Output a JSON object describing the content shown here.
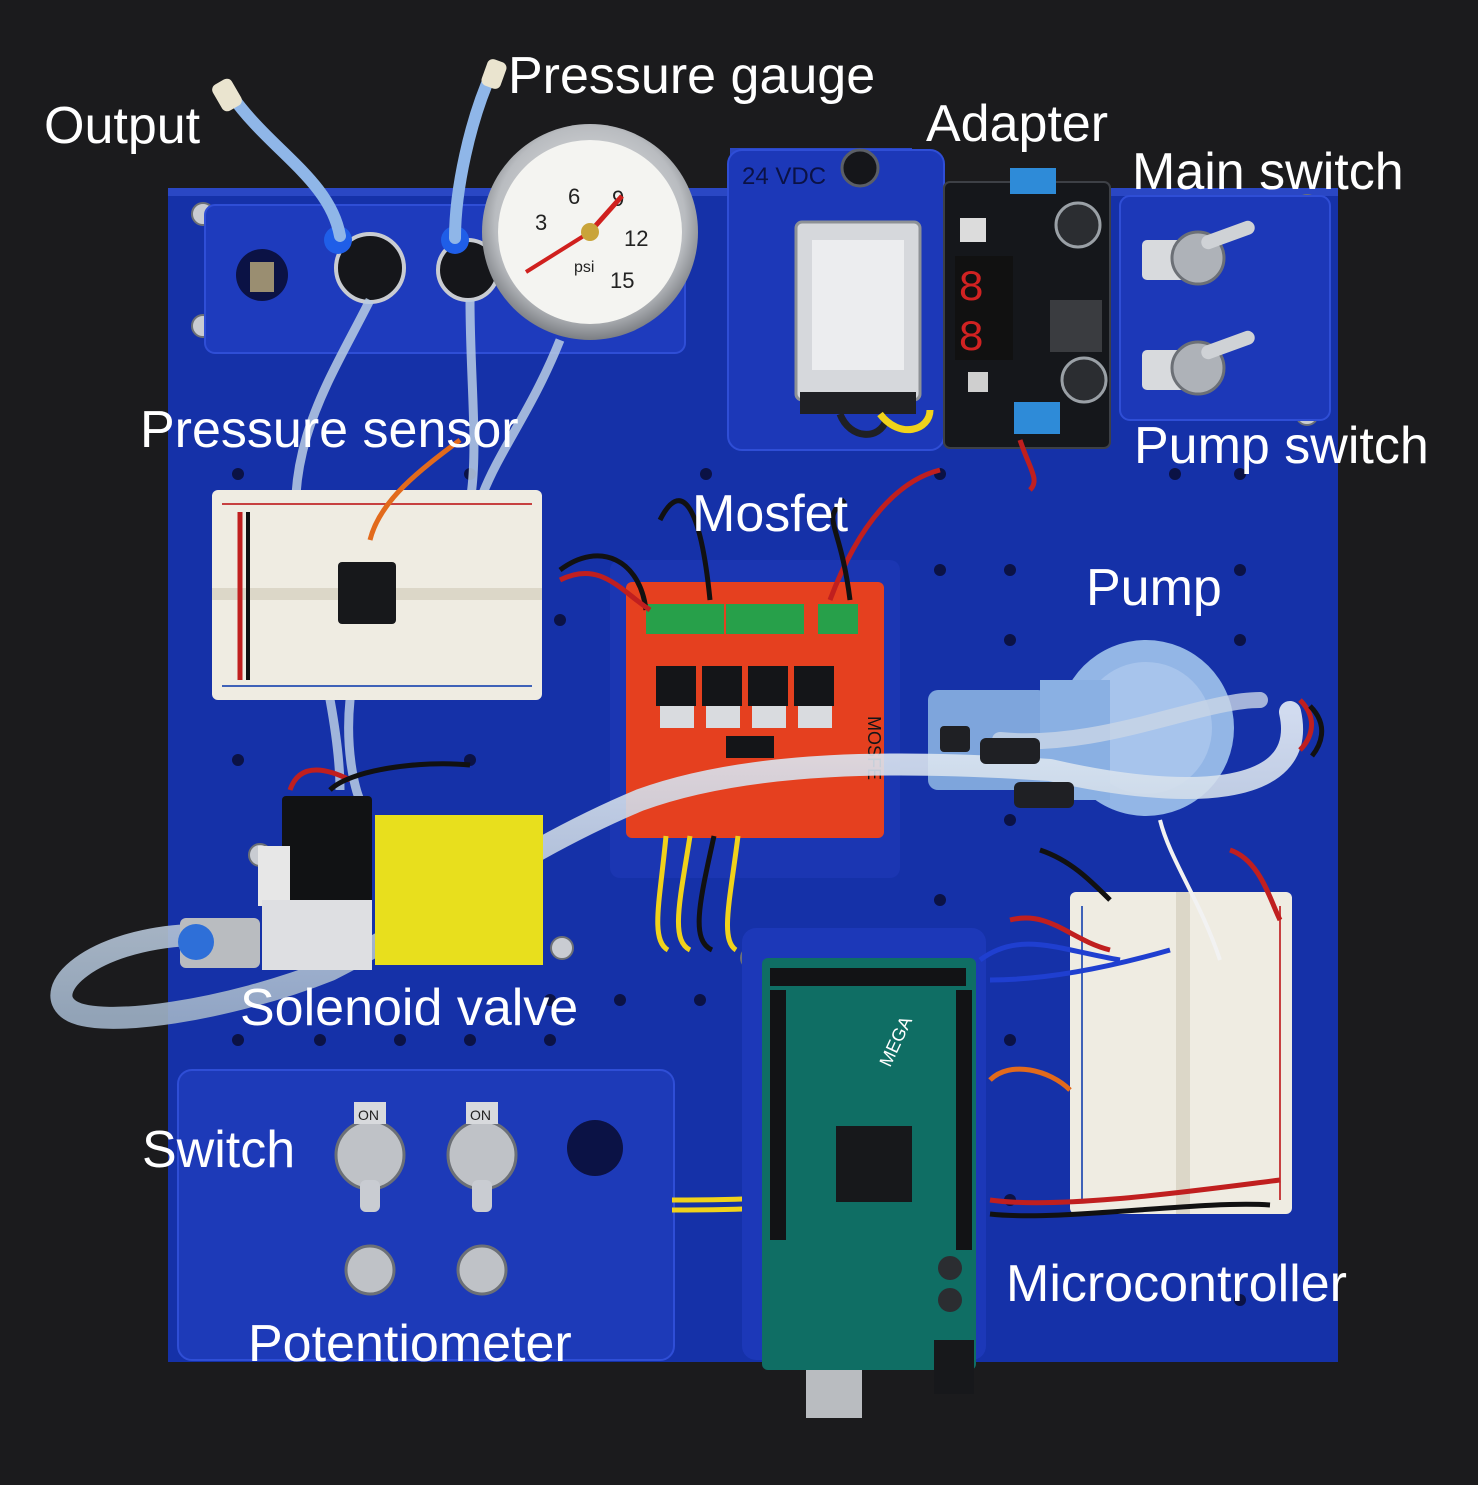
{
  "labels": {
    "output": "Output",
    "pressure_gauge": "Pressure gauge",
    "adapter": "Adapter",
    "main_switch": "Main switch",
    "pressure_sensor": "Pressure sensor",
    "pump_switch": "Pump switch",
    "mosfet": "Mosfet",
    "pump": "Pump",
    "solenoid_valve": "Solenoid valve",
    "switch": "Switch",
    "microcontroller": "Microcontroller",
    "potentiometer": "Potentiometer"
  },
  "board_markings": {
    "supply_voltage": "24 VDC",
    "gauge_ticks": [
      "3",
      "6",
      "9",
      "12",
      "15"
    ],
    "gauge_unit": "psi",
    "gauge_reading_psi": 9,
    "mosfet_board": "MOSFE",
    "arduino": "MEGA",
    "switch_on": "ON"
  },
  "colors": {
    "background": "#1b1b1d",
    "board": "#1531a8",
    "label_text": "#ffffff",
    "mosfet_pcb": "#e5401f",
    "arduino_pcb": "#0f6e64",
    "valve_plate": "#e8df1d",
    "breadboard": "#efece2",
    "tubing": "#c9d6e6"
  }
}
